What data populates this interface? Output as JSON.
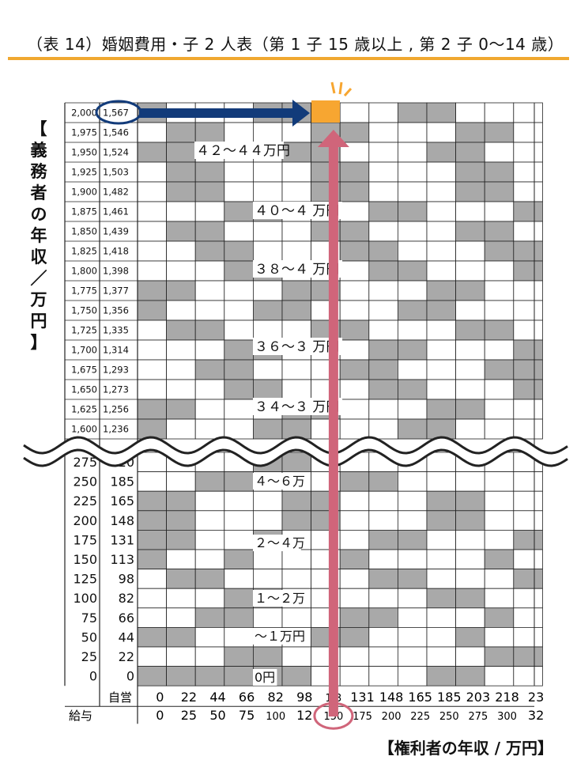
{
  "title": "（表 14）婚姻費用・子 2 人表（第 1 子 15 歳以上 , 第 2 子 0〜14 歳）",
  "colors": {
    "accent": "#f0a830",
    "band": "#a9a9a9",
    "arrow_blue": "#123b7a",
    "arrow_pink": "#d0657a",
    "highlight": "#f7a631"
  },
  "chart_data": {
    "type": "heatmap",
    "title": "（表 14）婚姻費用・子 2 人表（第 1 子 15 歳以上 , 第 2 子 0〜14 歳）",
    "y_axis_title": "【義務者の年収／万円】",
    "x_axis_title": "【権利者の年収 / 万円】",
    "y_upper": {
      "kyuyo": [
        "2,000",
        "1,975",
        "1,950",
        "1,925",
        "1,900",
        "1,875",
        "1,850",
        "1,825",
        "1,800",
        "1,775",
        "1,750",
        "1,725",
        "1,700",
        "1,675",
        "1,650",
        "1,625",
        "1,600"
      ],
      "jiei": [
        "1,567",
        "1,546",
        "1,524",
        "1,503",
        "1,482",
        "1,461",
        "1,439",
        "1,418",
        "1,398",
        "1,377",
        "1,356",
        "1,335",
        "1,314",
        "1,293",
        "1,273",
        "1,256",
        "1,236"
      ]
    },
    "y_lower": {
      "kyuyo": [
        "275",
        "250",
        "225",
        "200",
        "175",
        "150",
        "125",
        "100",
        "75",
        "50",
        "25",
        "0"
      ],
      "jiei": [
        "20",
        "185",
        "165",
        "148",
        "131",
        "113",
        "98",
        "82",
        "66",
        "44",
        "22",
        "0"
      ]
    },
    "x": {
      "row_jiei_label": "自営",
      "row_kyuyo_label": "給与",
      "jiei": [
        "0",
        "22",
        "44",
        "66",
        "82",
        "98",
        "1  3",
        "131",
        "148",
        "165",
        "185",
        "203",
        "218",
        "23"
      ],
      "kyuyo": [
        "0",
        "25",
        "50",
        "75",
        "100",
        "12",
        "150",
        "175",
        "200",
        "225",
        "250",
        "275",
        "300",
        "32"
      ]
    },
    "band_labels": [
      "４２〜４４万円",
      "４０〜４ 万円",
      "３８〜４ 万円",
      "３６〜３ 万円",
      "３４〜３ 万円",
      "４〜６万",
      "２〜４万",
      "１〜２万",
      "〜１万円",
      "0円"
    ],
    "highlight": {
      "x_kyuyo": 150,
      "y_kyuyo": 2000,
      "y_jiei": 1567
    }
  }
}
